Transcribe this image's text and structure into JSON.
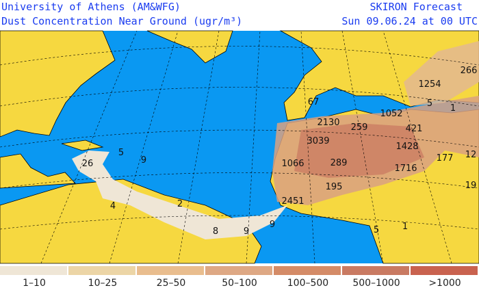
{
  "header": {
    "title": "University of Athens (AM&WFG)",
    "subtitle": "Dust Concentration Near Ground (ugr/m³)",
    "forecast": "SKIRON Forecast",
    "valid": "Sun 09.06.24 at 00 UTC"
  },
  "legend": [
    {
      "label": "1–10",
      "color": "#efe6d6"
    },
    {
      "label": "10–25",
      "color": "#ecd5a6"
    },
    {
      "label": "25–50",
      "color": "#e9bd8e"
    },
    {
      "label": "50–100",
      "color": "#dea884"
    },
    {
      "label": "100–500",
      "color": "#d48b67"
    },
    {
      "label": "500–1000",
      "color": "#c97a62"
    },
    {
      "label": ">1000",
      "color": "#c9624f"
    }
  ],
  "map": {
    "labels": [
      "67",
      "2130",
      "259",
      "1052",
      "1254",
      "266",
      "5",
      "1",
      "421",
      "3039",
      "1428",
      "1066",
      "289",
      "1716",
      "177",
      "12",
      "195",
      "19",
      "2451",
      "26",
      "5",
      "9",
      "2",
      "4",
      "8",
      "9",
      "9",
      "5",
      "1"
    ]
  }
}
